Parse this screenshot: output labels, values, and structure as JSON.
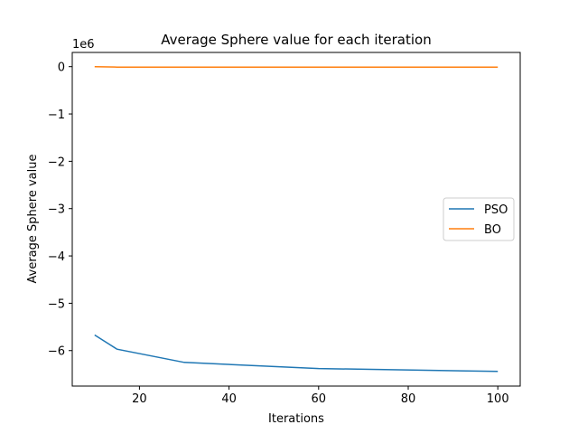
{
  "chart_data": {
    "type": "line",
    "title": "Average Sphere value for each iteration",
    "xlabel": "Iterations",
    "ylabel": "Average Sphere value",
    "y_scale_label": "1e6",
    "xlim": [
      5,
      105
    ],
    "ylim": [
      -6.75,
      0.3
    ],
    "x_ticks": [
      20,
      40,
      60,
      80,
      100
    ],
    "y_ticks": [
      0,
      -1,
      -2,
      -3,
      -4,
      -5,
      -6
    ],
    "x_tick_labels": [
      "20",
      "40",
      "60",
      "80",
      "100"
    ],
    "y_tick_labels": [
      "0",
      "−1",
      "−2",
      "−3",
      "−4",
      "−5",
      "−6"
    ],
    "legend_position": "center-right",
    "grid": false,
    "series": [
      {
        "name": "PSO",
        "color": "#1f77b4",
        "x": [
          10,
          15,
          30,
          60,
          100
        ],
        "y": [
          -5.67,
          -5.97,
          -6.25,
          -6.38,
          -6.44
        ]
      },
      {
        "name": "BO",
        "color": "#ff7f0e",
        "x": [
          10,
          15,
          30,
          60,
          100
        ],
        "y": [
          0,
          -0.01,
          -0.01,
          -0.01,
          -0.01
        ]
      }
    ]
  }
}
